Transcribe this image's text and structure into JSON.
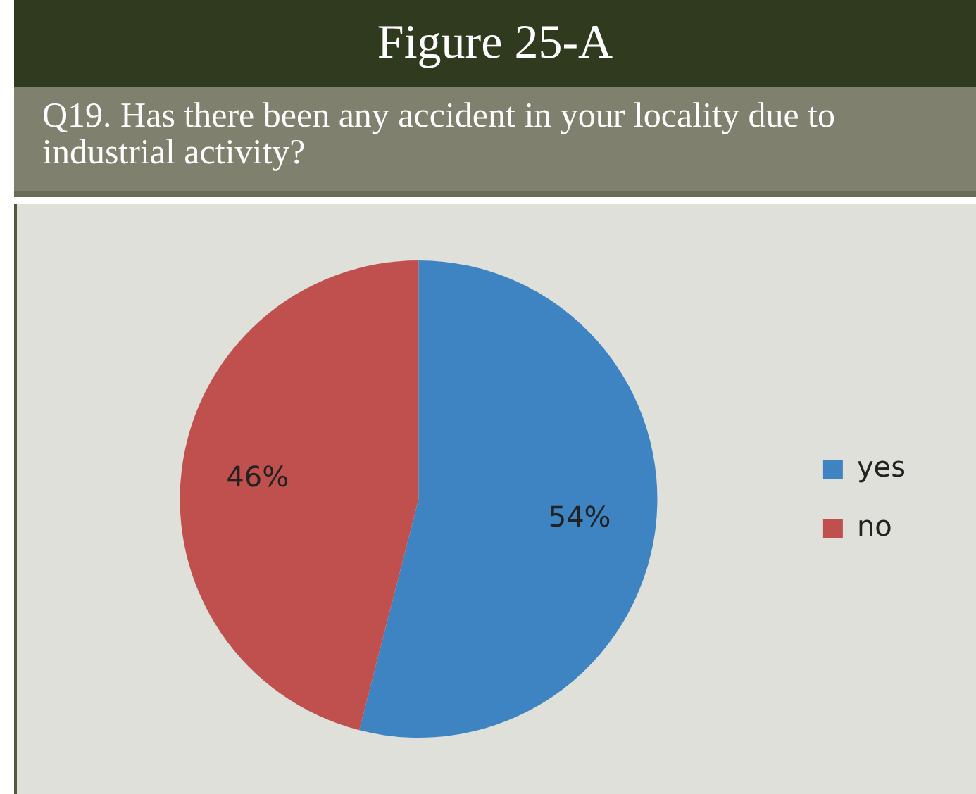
{
  "chart_data": {
    "type": "pie",
    "title": "Figure 25-A",
    "subtitle": "Q19. Has there been any accident in your locality due to industrial activity?",
    "categories": [
      "yes",
      "no"
    ],
    "values": [
      54,
      46
    ],
    "colors": [
      "#3f84c2",
      "#c0504d"
    ],
    "value_labels": [
      "54%",
      "46%"
    ],
    "legend": "right"
  }
}
